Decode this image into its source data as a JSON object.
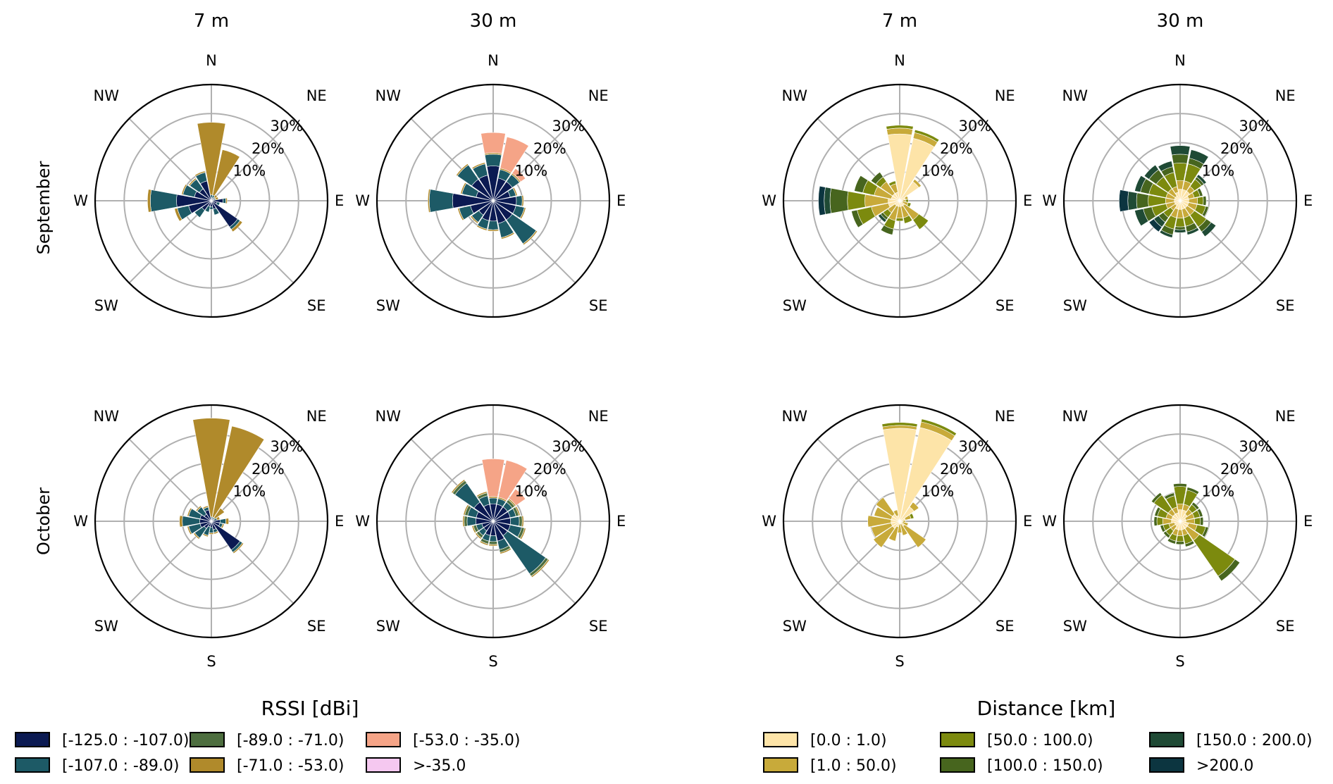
{
  "column_titles": [
    "7 m",
    "30 m",
    "7 m",
    "30 m"
  ],
  "row_titles": [
    "September",
    "October"
  ],
  "direction_labels": [
    "N",
    "NE",
    "E",
    "SE",
    "S",
    "SW",
    "W",
    "NW"
  ],
  "radial_tick_labels": [
    "10%",
    "20%",
    "30%"
  ],
  "colors": {
    "rssi": [
      "#0b1a52",
      "#1d5a66",
      "#4d6e3f",
      "#b08a2b",
      "#f5a487",
      "#f5c8f0"
    ],
    "distance": [
      "#fde4a8",
      "#c8aa3a",
      "#7c8a0e",
      "#47651e",
      "#1f4a35",
      "#0c3540"
    ]
  },
  "legends": [
    {
      "title": "RSSI [dBi]",
      "entries": [
        "[-125.0 : -107.0)",
        "[-107.0 : -89.0)",
        "[-89.0 : -71.0)",
        "[-71.0 : -53.0)",
        "[-53.0 : -35.0)",
        ">-35.0"
      ]
    },
    {
      "title": "Distance [km]",
      "entries": [
        "[0.0 : 1.0)",
        "[1.0 : 50.0)",
        "[50.0 : 100.0)",
        "[100.0 : 150.0)",
        "[150.0 : 200.0)",
        ">200.0"
      ]
    }
  ],
  "chart_data": [
    {
      "type": "windrose",
      "title": "7 m",
      "row": "September",
      "variable": "RSSI [dBi]",
      "rlim": [
        0,
        40
      ],
      "rticks": [
        10,
        20,
        30
      ],
      "sectors": 16,
      "grid": true,
      "stacks": [
        [
          4,
          1,
          0,
          0.5,
          0,
          0
        ],
        [
          1,
          0.5,
          0,
          1,
          0,
          0
        ],
        [
          1,
          0.5,
          0,
          1,
          0,
          0
        ],
        [
          1,
          1,
          0,
          16,
          0,
          0
        ],
        [
          1,
          1,
          0,
          25,
          0,
          0
        ],
        [
          7,
          3,
          0,
          0.5,
          0,
          0
        ],
        [
          5,
          4,
          0,
          0.5,
          0,
          0
        ],
        [
          6,
          4,
          0,
          0.5,
          0,
          0
        ],
        [
          12,
          9,
          0,
          1,
          0,
          0
        ],
        [
          8,
          4,
          0,
          1,
          0,
          0
        ],
        [
          4,
          3,
          0,
          0,
          0,
          0
        ],
        [
          2,
          2,
          0,
          0,
          0,
          0
        ],
        [
          2,
          1,
          0,
          0,
          0,
          0
        ],
        [
          3,
          2,
          0,
          0,
          0,
          0
        ],
        [
          11,
          1,
          0,
          1,
          0,
          0
        ],
        [
          2,
          1,
          0,
          0,
          0,
          0
        ]
      ]
    },
    {
      "type": "windrose",
      "title": "30 m",
      "row": "September",
      "variable": "RSSI [dBi]",
      "rlim": [
        0,
        40
      ],
      "rticks": [
        10,
        20,
        30
      ],
      "sectors": 16,
      "grid": true,
      "stacks": [
        [
          8,
          2,
          0,
          0.5,
          0,
          0
        ],
        [
          6,
          2,
          0,
          0.5,
          0,
          0
        ],
        [
          8,
          3,
          0,
          0.5,
          2,
          0
        ],
        [
          8,
          3,
          0,
          0.5,
          11,
          0
        ],
        [
          12,
          4,
          0,
          0.5,
          7,
          0
        ],
        [
          9,
          4,
          0,
          0.5,
          0,
          0
        ],
        [
          9,
          6,
          0,
          0.5,
          0,
          0
        ],
        [
          6,
          5,
          0,
          0.5,
          0,
          0
        ],
        [
          14,
          8,
          0,
          0.5,
          0,
          0
        ],
        [
          8,
          4,
          0,
          0.5,
          0,
          0
        ],
        [
          6,
          3,
          0,
          0.5,
          0,
          0
        ],
        [
          7,
          3,
          0,
          0.5,
          0,
          0
        ],
        [
          7,
          3,
          0,
          0.5,
          0,
          0
        ],
        [
          8,
          5,
          0,
          0.5,
          0,
          0
        ],
        [
          8,
          10,
          0,
          0.5,
          0,
          0
        ],
        [
          8,
          3,
          0,
          0.5,
          0,
          0
        ]
      ]
    },
    {
      "type": "windrose",
      "title": "7 m",
      "row": "September",
      "variable": "Distance [km]",
      "rlim": [
        0,
        40
      ],
      "rticks": [
        10,
        20,
        30
      ],
      "sectors": 16,
      "grid": true,
      "stacks": [
        [
          1,
          1,
          1,
          0,
          0,
          0
        ],
        [
          2,
          1,
          0,
          0,
          0,
          0
        ],
        [
          8,
          1,
          0,
          0,
          0,
          0
        ],
        [
          22,
          2,
          1,
          0,
          0,
          0
        ],
        [
          23,
          2,
          1,
          0,
          0,
          0
        ],
        [
          3,
          3,
          1,
          0,
          0,
          0
        ],
        [
          3,
          5,
          2,
          2,
          0,
          0
        ],
        [
          3,
          6,
          4,
          3,
          0,
          0
        ],
        [
          4,
          8,
          6,
          6,
          2,
          2
        ],
        [
          4,
          6,
          5,
          2,
          0,
          0
        ],
        [
          2,
          3,
          2,
          1,
          1,
          0
        ],
        [
          2,
          5,
          3,
          2,
          0,
          0
        ],
        [
          2,
          4,
          1,
          0,
          0,
          0
        ],
        [
          2,
          4,
          2,
          0,
          0,
          0
        ],
        [
          2,
          6,
          4,
          0,
          0,
          0
        ],
        [
          1,
          2,
          1,
          0,
          0,
          0
        ]
      ]
    },
    {
      "type": "windrose",
      "title": "30 m",
      "row": "September",
      "variable": "Distance [km]",
      "rlim": [
        0,
        40
      ],
      "rticks": [
        10,
        20,
        30
      ],
      "sectors": 16,
      "grid": true,
      "stacks": [
        [
          3,
          3,
          2,
          1,
          0,
          0
        ],
        [
          3,
          2,
          2,
          1,
          0,
          0
        ],
        [
          4,
          2,
          3,
          1,
          1,
          0
        ],
        [
          4,
          3,
          6,
          2,
          3,
          0
        ],
        [
          4,
          3,
          6,
          3,
          3,
          0
        ],
        [
          3,
          2,
          5,
          2,
          2,
          0
        ],
        [
          2,
          3,
          5,
          3,
          2,
          0
        ],
        [
          2,
          3,
          6,
          3,
          2,
          0
        ],
        [
          2,
          3,
          6,
          4,
          3,
          3
        ],
        [
          2,
          3,
          5,
          3,
          3,
          0
        ],
        [
          2,
          2,
          3,
          2,
          2,
          2
        ],
        [
          3,
          3,
          4,
          2,
          1,
          0
        ],
        [
          3,
          3,
          3,
          1,
          1,
          0
        ],
        [
          3,
          3,
          3,
          2,
          1,
          0
        ],
        [
          3,
          3,
          5,
          2,
          2,
          0
        ],
        [
          3,
          3,
          3,
          1,
          0,
          0
        ]
      ]
    },
    {
      "type": "windrose",
      "title": "7 m",
      "row": "October",
      "variable": "RSSI [dBi]",
      "rlim": [
        0,
        40
      ],
      "rticks": [
        10,
        20,
        30
      ],
      "sectors": 16,
      "grid": true,
      "stacks": [
        [
          3,
          2,
          0,
          1,
          0,
          0
        ],
        [
          1,
          1,
          0,
          1,
          0,
          0
        ],
        [
          1,
          0.5,
          0,
          4,
          0,
          0
        ],
        [
          1,
          0.5,
          0,
          32,
          0,
          0
        ],
        [
          1,
          0.5,
          0,
          34,
          0,
          0
        ],
        [
          4,
          1,
          0,
          0.5,
          0,
          0
        ],
        [
          3,
          3,
          0,
          0.5,
          0,
          0
        ],
        [
          4,
          4,
          0,
          0.5,
          0,
          0
        ],
        [
          4,
          6,
          0,
          1,
          0,
          0
        ],
        [
          4,
          4,
          0,
          0.5,
          0,
          0
        ],
        [
          3,
          4,
          0,
          0.5,
          0,
          0
        ],
        [
          2,
          3,
          0,
          0.5,
          0,
          0
        ],
        [
          2,
          2,
          0,
          0.5,
          0,
          0
        ],
        [
          3,
          1,
          0,
          0.5,
          0,
          0
        ],
        [
          12,
          1,
          0,
          0.5,
          0,
          0
        ],
        [
          3,
          1,
          0,
          0.5,
          0,
          0
        ]
      ]
    },
    {
      "type": "windrose",
      "title": "30 m",
      "row": "October",
      "variable": "RSSI [dBi]",
      "rlim": [
        0,
        40
      ],
      "rticks": [
        10,
        20,
        30
      ],
      "sectors": 16,
      "grid": true,
      "stacks": [
        [
          6,
          3,
          1,
          0.5,
          0,
          0
        ],
        [
          6,
          2,
          1,
          0.5,
          0,
          0
        ],
        [
          6,
          2,
          1,
          0.5,
          4,
          0
        ],
        [
          6,
          2,
          0,
          0.5,
          13,
          0
        ],
        [
          6,
          2,
          0,
          0.5,
          13,
          0
        ],
        [
          6,
          3,
          1,
          0.5,
          0,
          0
        ],
        [
          8,
          8,
          1,
          0.5,
          0,
          0
        ],
        [
          6,
          3,
          1,
          0.5,
          0,
          0
        ],
        [
          6,
          3,
          1,
          0.5,
          0,
          0
        ],
        [
          4,
          2,
          1,
          0.5,
          0,
          0
        ],
        [
          4,
          2,
          1,
          0.5,
          0,
          0
        ],
        [
          5,
          2,
          1,
          0.5,
          0,
          0
        ],
        [
          5,
          2,
          1,
          0.5,
          0,
          0
        ],
        [
          7,
          3,
          1,
          0.5,
          0,
          0
        ],
        [
          6,
          16,
          1,
          0.5,
          0,
          0
        ],
        [
          6,
          4,
          1,
          0.5,
          0,
          0
        ]
      ]
    },
    {
      "type": "windrose",
      "title": "7 m",
      "row": "October",
      "variable": "Distance [km]",
      "rlim": [
        0,
        40
      ],
      "rticks": [
        10,
        20,
        30
      ],
      "sectors": 16,
      "grid": true,
      "stacks": [
        [
          1,
          1,
          0,
          0,
          0,
          0
        ],
        [
          2,
          2,
          1,
          0,
          0,
          0
        ],
        [
          6,
          2,
          0,
          0,
          0,
          0
        ],
        [
          33,
          2,
          1,
          0,
          0,
          0
        ],
        [
          32,
          1,
          1,
          0,
          0,
          0
        ],
        [
          2,
          2,
          0,
          0,
          0,
          0
        ],
        [
          3,
          7,
          0,
          0,
          0,
          0
        ],
        [
          3,
          6,
          0,
          0,
          0,
          0
        ],
        [
          3,
          8,
          0,
          0,
          0,
          0
        ],
        [
          3,
          7,
          0,
          0,
          0,
          0
        ],
        [
          3,
          8,
          0,
          0,
          0,
          0
        ],
        [
          2,
          5,
          0,
          0,
          0,
          0
        ],
        [
          1,
          3,
          0,
          0,
          0,
          0
        ],
        [
          1,
          4,
          0,
          0,
          0,
          0
        ],
        [
          2,
          9,
          0,
          0,
          0,
          0
        ],
        [
          1,
          2,
          0,
          0,
          0,
          0
        ]
      ]
    },
    {
      "type": "windrose",
      "title": "30 m",
      "row": "October",
      "variable": "Distance [km]",
      "rlim": [
        0,
        40
      ],
      "rticks": [
        10,
        20,
        30
      ],
      "sectors": 16,
      "grid": true,
      "stacks": [
        [
          2,
          3,
          2,
          1,
          0,
          0
        ],
        [
          2,
          3,
          2,
          1,
          0,
          0
        ],
        [
          3,
          2,
          2,
          1,
          0,
          0
        ],
        [
          4,
          2,
          5,
          1,
          0,
          0
        ],
        [
          4,
          2,
          6,
          1,
          0,
          0
        ],
        [
          3,
          2,
          4,
          1,
          0,
          0
        ],
        [
          3,
          2,
          6,
          1,
          0,
          0
        ],
        [
          3,
          2,
          3,
          1,
          0,
          0
        ],
        [
          3,
          3,
          2,
          1,
          0,
          0
        ],
        [
          2,
          2,
          2,
          1,
          0,
          0
        ],
        [
          2,
          2,
          2,
          1,
          0,
          0
        ],
        [
          3,
          2,
          2,
          1,
          0,
          0
        ],
        [
          3,
          2,
          2,
          1,
          0,
          0
        ],
        [
          3,
          2,
          3,
          1,
          0,
          0
        ],
        [
          3,
          5,
          15,
          2,
          0,
          0
        ],
        [
          3,
          3,
          3,
          1,
          0,
          0
        ]
      ]
    }
  ]
}
